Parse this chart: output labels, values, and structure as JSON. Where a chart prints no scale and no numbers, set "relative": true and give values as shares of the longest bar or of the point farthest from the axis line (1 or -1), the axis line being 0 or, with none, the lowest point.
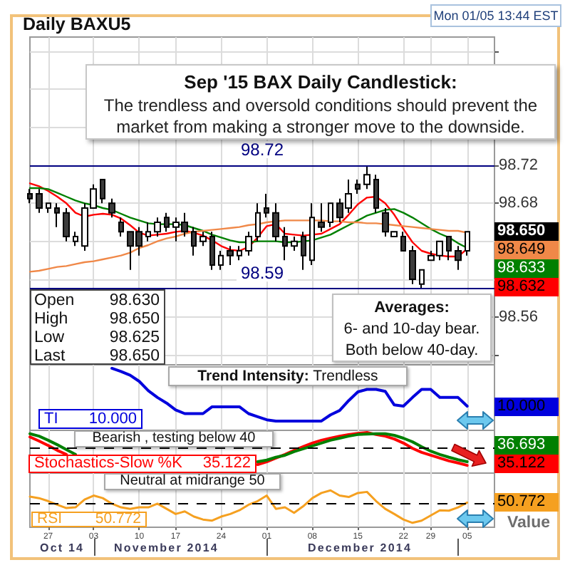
{
  "chart_data": [
    {
      "type": "candlestick",
      "title": "Sep '15 BAX Daily Candlestick:",
      "subtitle": "The trendless and oversold conditions should prevent the market from making a stronger move to the downside.",
      "categories": [
        null,
        null,
        "27",
        null,
        null,
        null,
        null,
        "03",
        null,
        null,
        null,
        null,
        "10",
        null,
        null,
        null,
        "17",
        null,
        null,
        null,
        null,
        "24",
        null,
        null,
        null,
        null,
        "01",
        null,
        null,
        null,
        null,
        "08",
        null,
        null,
        null,
        null,
        "15",
        null,
        null,
        null,
        null,
        "22",
        null,
        null,
        "29",
        null,
        null,
        null,
        "05"
      ],
      "ohlc": [
        [
          98.69,
          98.695,
          98.68,
          98.685
        ],
        [
          98.69,
          98.695,
          98.67,
          98.675
        ],
        [
          98.675,
          98.68,
          98.67,
          98.68
        ],
        [
          98.675,
          98.68,
          98.655,
          98.67
        ],
        [
          98.67,
          98.675,
          98.64,
          98.645
        ],
        [
          98.64,
          98.65,
          98.635,
          98.645
        ],
        [
          98.635,
          98.68,
          98.63,
          98.675
        ],
        [
          98.675,
          98.7,
          98.675,
          98.695
        ],
        [
          98.705,
          98.705,
          98.68,
          98.685
        ],
        [
          98.68,
          98.685,
          98.665,
          98.67
        ],
        [
          98.66,
          98.665,
          98.645,
          98.65
        ],
        [
          98.65,
          98.65,
          98.61,
          98.635
        ],
        [
          98.65,
          98.655,
          98.625,
          98.635
        ],
        [
          98.645,
          98.66,
          98.64,
          98.65
        ],
        [
          98.65,
          98.665,
          98.645,
          98.66
        ],
        [
          98.665,
          98.67,
          98.65,
          98.655
        ],
        [
          98.655,
          98.665,
          98.64,
          98.66
        ],
        [
          98.66,
          98.67,
          98.645,
          98.65
        ],
        [
          98.65,
          98.655,
          98.625,
          98.635
        ],
        [
          98.64,
          98.65,
          98.635,
          98.645
        ],
        [
          98.645,
          98.65,
          98.61,
          98.615
        ],
        [
          98.615,
          98.63,
          98.61,
          98.625
        ],
        [
          98.63,
          98.635,
          98.615,
          98.625
        ],
        [
          98.625,
          98.635,
          98.62,
          98.63
        ],
        [
          98.63,
          98.65,
          98.625,
          98.645
        ],
        [
          98.645,
          98.68,
          98.64,
          98.67
        ],
        [
          98.675,
          98.69,
          98.665,
          98.67
        ],
        [
          98.67,
          98.68,
          98.64,
          98.645
        ],
        [
          98.645,
          98.655,
          98.62,
          98.635
        ],
        [
          98.635,
          98.645,
          98.63,
          98.64
        ],
        [
          98.645,
          98.65,
          98.61,
          98.625
        ],
        [
          98.62,
          98.68,
          98.615,
          98.665
        ],
        [
          98.66,
          98.68,
          98.65,
          98.655
        ],
        [
          98.66,
          98.68,
          98.655,
          98.68
        ],
        [
          98.68,
          98.685,
          98.66,
          98.665
        ],
        [
          98.675,
          98.705,
          98.67,
          98.69
        ],
        [
          98.7,
          98.705,
          98.69,
          98.695
        ],
        [
          98.7,
          98.72,
          98.695,
          98.71
        ],
        [
          98.705,
          98.71,
          98.67,
          98.675
        ],
        [
          98.67,
          98.675,
          98.645,
          98.65
        ],
        [
          98.645,
          98.65,
          98.645,
          98.65
        ],
        [
          98.645,
          98.65,
          98.63,
          98.63
        ],
        [
          98.63,
          98.635,
          98.595,
          98.6
        ],
        [
          98.595,
          98.61,
          98.59,
          98.61
        ],
        [
          98.62,
          98.63,
          98.62,
          98.625
        ],
        [
          98.625,
          98.64,
          98.62,
          98.64
        ],
        [
          98.645,
          98.645,
          98.62,
          98.63
        ],
        [
          98.63,
          98.635,
          98.61,
          98.62
        ],
        [
          98.63,
          98.65,
          98.625,
          98.65
        ]
      ],
      "series": [
        {
          "type": "line",
          "color": "#ff0000",
          "values": [
            98.701,
            98.698,
            98.693,
            98.687,
            98.68,
            98.67,
            98.666,
            98.668,
            98.669,
            98.668,
            98.664,
            98.657,
            98.649,
            98.646,
            98.647,
            98.648,
            98.65,
            98.651,
            98.649,
            98.646,
            98.641,
            98.635,
            98.631,
            98.63,
            98.634,
            98.644,
            98.656,
            98.658,
            98.648,
            98.647,
            98.646,
            98.647,
            98.648,
            98.653,
            98.658,
            98.668,
            98.679,
            98.686,
            98.687,
            98.68,
            98.668,
            98.653,
            98.639,
            98.63,
            98.627,
            98.625,
            98.624,
            98.624,
            98.632
          ]
        },
        {
          "type": "line",
          "color": "#008000",
          "values": [
            98.696,
            98.696,
            98.695,
            98.691,
            98.687,
            98.683,
            98.68,
            98.678,
            98.675,
            98.673,
            98.669,
            98.665,
            98.662,
            98.659,
            98.658,
            98.658,
            98.658,
            98.657,
            98.654,
            98.651,
            98.647,
            98.644,
            98.641,
            98.639,
            98.639,
            98.64,
            98.64,
            98.64,
            98.639,
            98.639,
            98.64,
            98.641,
            98.644,
            98.647,
            98.652,
            98.657,
            98.662,
            98.667,
            98.67,
            98.673,
            98.674,
            98.67,
            98.665,
            98.659,
            98.653,
            98.648,
            98.644,
            98.638,
            98.633
          ]
        },
        {
          "type": "line",
          "color": "#f08848",
          "values": [
            98.608,
            98.609,
            98.611,
            98.613,
            98.614,
            98.616,
            98.618,
            98.619,
            98.621,
            98.623,
            98.625,
            98.628,
            98.633,
            98.636,
            98.64,
            98.643,
            98.645,
            98.648,
            98.65,
            98.651,
            98.652,
            98.653,
            98.654,
            98.655,
            98.657,
            98.658,
            98.66,
            98.661,
            98.662,
            98.662,
            98.662,
            98.662,
            98.662,
            98.661,
            98.661,
            98.66,
            98.66,
            98.659,
            98.659,
            98.658,
            98.657,
            98.656,
            98.655,
            98.654,
            98.653,
            98.652,
            98.651,
            98.651,
            98.649
          ]
        }
      ],
      "ylim": [
        98.51,
        98.855
      ],
      "yticks": [
        {
          "value": 98.52,
          "label": null
        },
        98.56,
        {
          "value": 98.6,
          "label": null
        },
        {
          "value": 98.64,
          "label": null
        },
        98.68,
        98.72,
        {
          "value": 98.76,
          "label": null
        },
        {
          "value": 98.8,
          "label": null
        },
        {
          "value": 98.84,
          "label": null
        }
      ],
      "grid": true,
      "tick_labels": "y",
      "ref_lines": [
        {
          "axis": "y",
          "value": 98.72,
          "label": "98.72",
          "color": "#000080"
        },
        {
          "axis": "y",
          "value": 98.59,
          "label": "98.59",
          "color": "#000080"
        }
      ],
      "annotations": [
        "Daily BAXU5",
        "Mon 01/05 13:44 EST",
        "Open",
        "98.630",
        "High",
        "98.650",
        "Low",
        "98.625",
        "Last",
        "98.650",
        "Averages:",
        "6- and 10-day bear.",
        "Both below 40-day.",
        {
          "text": "98.650",
          "x": "05",
          "y": 98.65
        },
        "98.649",
        "98.633",
        "98.632"
      ]
    },
    {
      "type": "line",
      "relative": true,
      "categories": [
        null,
        null,
        "27",
        null,
        null,
        null,
        null,
        "03",
        null,
        null,
        null,
        null,
        "10",
        null,
        null,
        null,
        "17",
        null,
        null,
        null,
        null,
        "24",
        null,
        null,
        null,
        null,
        "01",
        null,
        null,
        null,
        null,
        "08",
        null,
        null,
        null,
        null,
        "15",
        null,
        null,
        null,
        null,
        "22",
        null,
        null,
        "29",
        null,
        null,
        null,
        "05"
      ],
      "series": [
        {
          "name": "TI",
          "color": "#0000dd",
          "values": [
            null,
            null,
            null,
            null,
            null,
            null,
            null,
            null,
            null,
            1,
            0.95,
            0.89,
            0.79,
            0.64,
            0.53,
            0.44,
            0.33,
            0.27,
            0.27,
            0.27,
            0.38,
            0.38,
            0.38,
            0.38,
            0.27,
            0.22,
            0.17,
            0.15,
            0.15,
            0.15,
            0.15,
            0.15,
            0.15,
            0.25,
            0.32,
            0.48,
            0.62,
            0.66,
            0.66,
            0.63,
            0.41,
            0.39,
            0.53,
            0.66,
            0.66,
            0.53,
            0.53,
            0.53,
            0.39
          ]
        }
      ],
      "grid": "x",
      "tick_labels": false,
      "annotations": [
        "Trend Intensity:",
        "Trendless",
        "10.000",
        "10.000"
      ]
    },
    {
      "type": "line",
      "relative": true,
      "categories": [
        null,
        null,
        "27",
        null,
        null,
        null,
        null,
        "03",
        null,
        null,
        null,
        null,
        "10",
        null,
        null,
        null,
        "17",
        null,
        null,
        null,
        null,
        "24",
        null,
        null,
        null,
        null,
        "01",
        null,
        null,
        null,
        null,
        "08",
        null,
        null,
        null,
        null,
        "15",
        null,
        null,
        null,
        null,
        "22",
        null,
        null,
        "29",
        null,
        null,
        null,
        "05"
      ],
      "series": [
        {
          "name": "Stochastics-Slow %K",
          "color": "#ff0000",
          "values": [
            0.89,
            0.79,
            0.68,
            0.56,
            0.46,
            null,
            null,
            null,
            null,
            null,
            null,
            null,
            null,
            null,
            null,
            null,
            null,
            null,
            null,
            null,
            null,
            null,
            null,
            null,
            null,
            0.21,
            0.28,
            0.37,
            0.46,
            0.56,
            0.65,
            0.74,
            0.81,
            0.86,
            0.91,
            0.95,
            0.98,
            1,
            0.95,
            0.91,
            0.84,
            0.74,
            0.61,
            0.51,
            0.44,
            0.37,
            0.3,
            0.25,
            0.19
          ]
        },
        {
          "color": "#008000",
          "values": [
            0.97,
            0.91,
            0.81,
            0.7,
            0.58,
            0.46,
            null,
            null,
            null,
            null,
            null,
            null,
            null,
            null,
            null,
            null,
            null,
            null,
            null,
            null,
            null,
            null,
            null,
            null,
            null,
            0.28,
            0.32,
            0.39,
            0.44,
            0.53,
            0.6,
            0.67,
            0.74,
            0.81,
            0.86,
            0.91,
            0.95,
            0.96,
            0.97,
            0.97,
            0.93,
            0.86,
            0.77,
            0.65,
            0.54,
            0.46,
            0.39,
            0.33,
            0.28
          ]
        }
      ],
      "grid": "x",
      "tick_labels": false,
      "ref_lines": [
        {
          "axis": "y",
          "value": 0.61,
          "color": "#000000",
          "line_style": "dashed"
        }
      ],
      "annotations": [
        "Bearish , testing below 40",
        "35.122",
        "36.693",
        "35.122"
      ]
    },
    {
      "type": "line",
      "relative": true,
      "categories": [
        null,
        null,
        "27",
        null,
        null,
        null,
        null,
        "03",
        null,
        null,
        null,
        null,
        "10",
        null,
        null,
        null,
        "17",
        null,
        null,
        null,
        null,
        "24",
        null,
        null,
        null,
        null,
        "01",
        null,
        null,
        null,
        null,
        "08",
        null,
        null,
        null,
        null,
        "15",
        null,
        null,
        null,
        null,
        "22",
        null,
        null,
        "29",
        null,
        null,
        null,
        "05"
      ],
      "series": [
        {
          "name": "RSI",
          "color": "#f5a020",
          "values": [
            0.83,
            0.79,
            0.71,
            0.61,
            0.52,
            0.54,
            0.75,
            0.86,
            0.79,
            0.64,
            0.54,
            0.5,
            0.54,
            0.54,
            0.64,
            0.5,
            0.36,
            0.43,
            0.29,
            0.21,
            0.18,
            0.29,
            0.36,
            0.46,
            0.61,
            0.71,
            0.86,
            0.5,
            0.54,
            0.39,
            0.57,
            0.79,
            0.93,
            1,
            0.86,
            0.82,
            0.93,
            0.96,
            0.71,
            0.5,
            0.36,
            0.21,
            0.12,
            0.18,
            0.32,
            0.46,
            0.45,
            0.54,
            0.67
          ]
        }
      ],
      "grid": "x",
      "tick_labels": "x",
      "ref_lines": [
        {
          "axis": "y",
          "value": 0.65,
          "color": "#000000",
          "line_style": "dashed"
        }
      ],
      "annotations": [
        "Neutral at midrange 50",
        "50.772",
        "50.772",
        "Value",
        "Oct 14",
        "November 2014",
        "December 2014"
      ]
    }
  ]
}
